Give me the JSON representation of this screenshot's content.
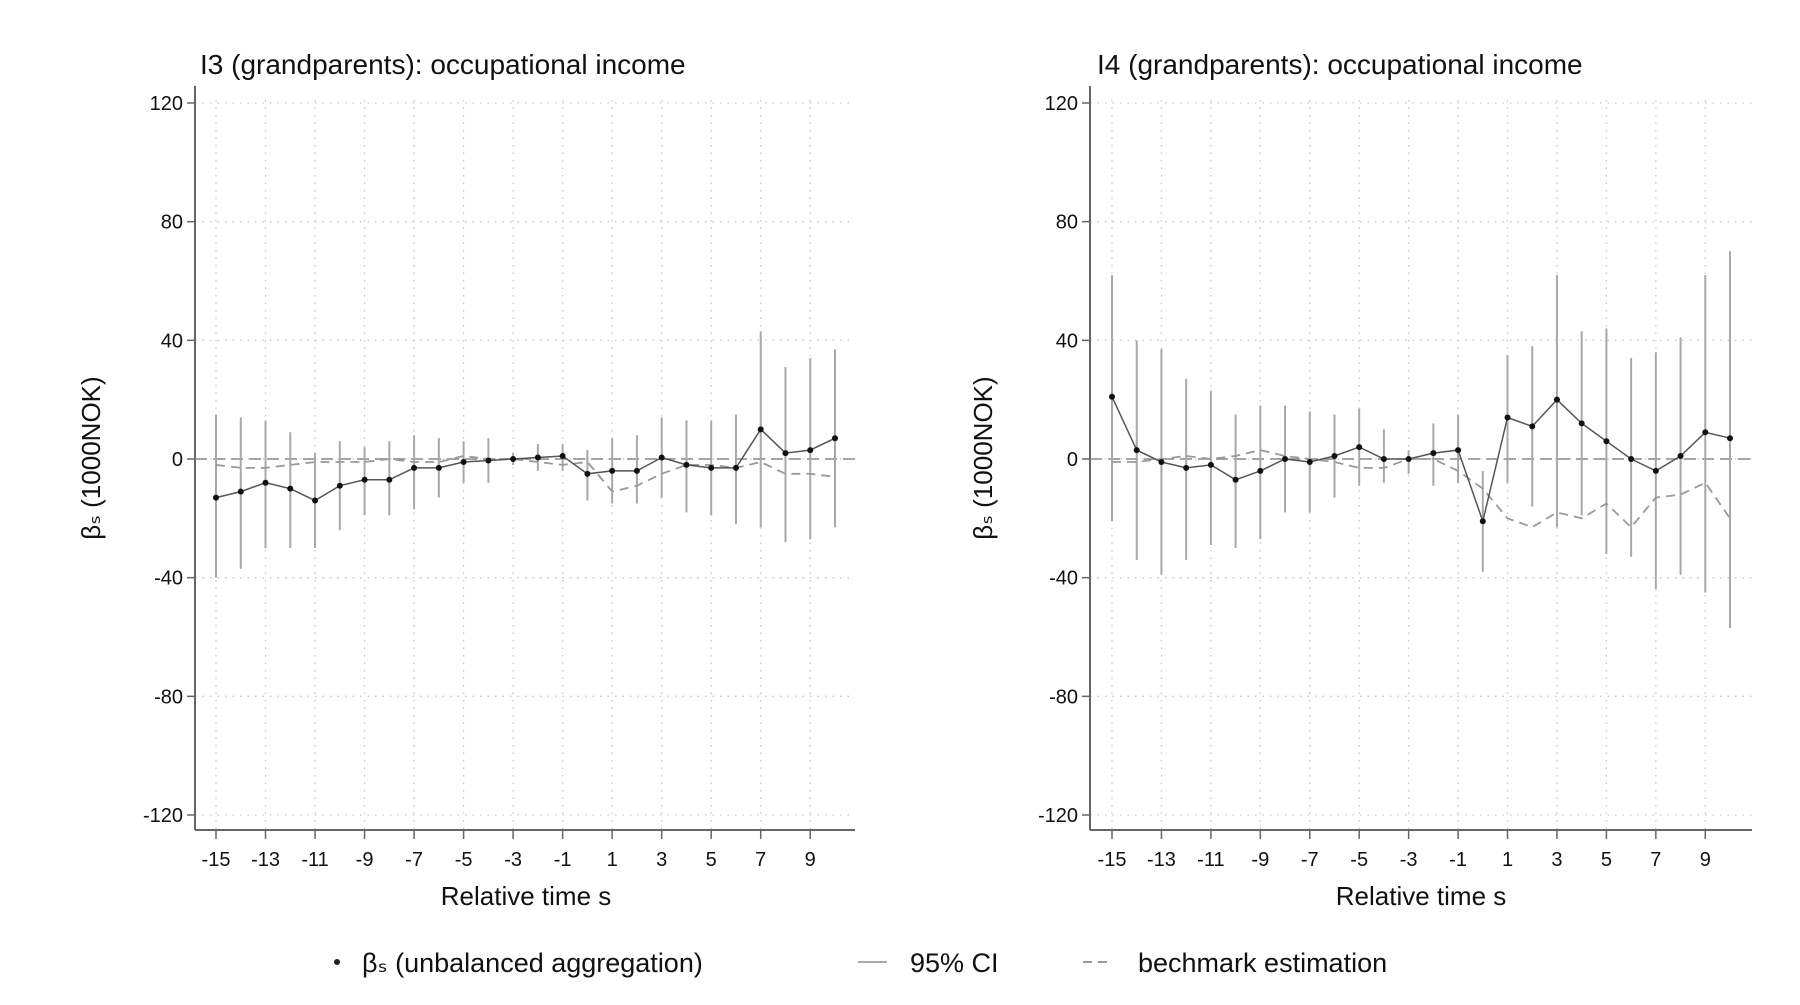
{
  "figure": {
    "legend": {
      "point_label": "βₛ (unbalanced aggregation)",
      "ci_label": "95% CI",
      "benchmark_label": "bechmark estimation"
    }
  },
  "chart_data": [
    {
      "type": "line",
      "title": "I3 (grandparents): occupational income",
      "xlabel": "Relative time s",
      "ylabel": "βₛ (1000NOK)",
      "xlim": [
        -15,
        10
      ],
      "ylim": [
        -120,
        120
      ],
      "yticks": [
        120,
        80,
        40,
        0,
        -40,
        -80,
        -120
      ],
      "xticks": [
        -15,
        -13,
        -11,
        -9,
        -7,
        -5,
        -3,
        -1,
        1,
        3,
        5,
        7,
        9
      ],
      "grid": true,
      "x": [
        -15,
        -14,
        -13,
        -12,
        -11,
        -10,
        -9,
        -8,
        -7,
        -6,
        -5,
        -4,
        -3,
        -2,
        -1,
        0,
        1,
        2,
        3,
        4,
        5,
        6,
        7,
        8,
        9,
        10
      ],
      "series": [
        {
          "name": "βₛ (unbalanced aggregation)",
          "values": [
            -13,
            -11,
            -8,
            -10,
            -14,
            -9,
            -7,
            -7,
            -3,
            -3,
            -1,
            -0.5,
            0,
            0.5,
            1,
            -5,
            -4,
            -4,
            0.5,
            -2,
            -3,
            -3,
            10,
            2,
            3,
            7
          ]
        },
        {
          "name": "95% CI lower",
          "values": [
            -40,
            -37,
            -30,
            -30,
            -30,
            -24,
            -19,
            -19,
            -17,
            -13,
            -8,
            -8,
            -2,
            -4,
            -4,
            -14,
            -15,
            -15,
            -13,
            -18,
            -19,
            -22,
            -23,
            -28,
            -27,
            -23
          ]
        },
        {
          "name": "95% CI upper",
          "values": [
            15,
            14,
            13,
            9,
            2,
            6,
            4,
            6,
            8,
            7,
            6,
            7,
            2,
            5,
            5,
            3,
            7,
            8,
            14,
            13,
            13,
            15,
            43,
            31,
            34,
            37
          ]
        },
        {
          "name": "bechmark estimation",
          "values": [
            -2,
            -3,
            -3,
            -2,
            -1,
            -1,
            -1,
            0,
            -1,
            -1,
            1,
            0,
            0,
            -1,
            -2,
            -1,
            -11,
            -9,
            -5,
            -2,
            -2,
            -3,
            -1,
            -5,
            -5,
            -6
          ]
        }
      ]
    },
    {
      "type": "line",
      "title": "I4 (grandparents): occupational income",
      "xlabel": "Relative time s",
      "ylabel": "βₛ (1000NOK)",
      "xlim": [
        -15,
        10
      ],
      "ylim": [
        -120,
        120
      ],
      "yticks": [
        120,
        80,
        40,
        0,
        -40,
        -80,
        -120
      ],
      "xticks": [
        -15,
        -13,
        -11,
        -9,
        -7,
        -5,
        -3,
        -1,
        1,
        3,
        5,
        7,
        9
      ],
      "grid": true,
      "x": [
        -15,
        -14,
        -13,
        -12,
        -11,
        -10,
        -9,
        -8,
        -7,
        -6,
        -5,
        -4,
        -3,
        -2,
        -1,
        0,
        1,
        2,
        3,
        4,
        5,
        6,
        7,
        8,
        9,
        10
      ],
      "series": [
        {
          "name": "βₛ (unbalanced aggregation)",
          "values": [
            21,
            3,
            -1,
            -3,
            -2,
            -7,
            -4,
            0,
            -1,
            1,
            4,
            0,
            0,
            2,
            3,
            -21,
            14,
            11,
            20,
            12,
            6,
            0,
            -4,
            1,
            9,
            7
          ]
        },
        {
          "name": "95% CI lower",
          "values": [
            -21,
            -34,
            -39,
            -34,
            -29,
            -30,
            -27,
            -18,
            -18,
            -13,
            -9,
            -8,
            -5,
            -9,
            -8,
            -38,
            -8,
            -16,
            -23,
            -19,
            -32,
            -33,
            -44,
            -39,
            -45,
            -57
          ]
        },
        {
          "name": "95% CI upper",
          "values": [
            62,
            40,
            37,
            27,
            23,
            15,
            18,
            18,
            16,
            15,
            17,
            10,
            3,
            12,
            15,
            -4,
            35,
            38,
            62,
            43,
            44,
            34,
            36,
            41,
            62,
            70
          ]
        },
        {
          "name": "bechmark estimation",
          "values": [
            -1,
            -1,
            0,
            1,
            0,
            1,
            3,
            1,
            0,
            -1,
            -3,
            -3,
            0,
            0,
            -4,
            -10,
            -20,
            -23,
            -18,
            -20,
            -15,
            -23,
            -13,
            -12,
            -8,
            -20
          ]
        }
      ]
    }
  ]
}
